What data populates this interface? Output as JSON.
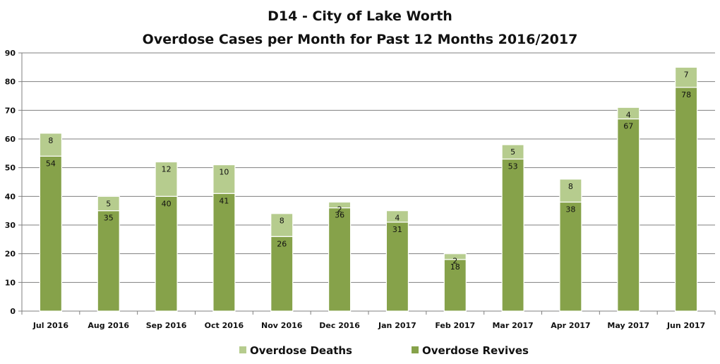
{
  "chart_data": {
    "type": "bar",
    "stacked": true,
    "title": "D14 - City of Lake Worth",
    "subtitle": "Overdose Cases per Month for Past 12 Months 2016/2017",
    "categories": [
      "Jul 2016",
      "Aug 2016",
      "Sep 2016",
      "Oct 2016",
      "Nov 2016",
      "Dec 2016",
      "Jan 2017",
      "Feb 2017",
      "Mar 2017",
      "Apr 2017",
      "May 2017",
      "Jun 2017"
    ],
    "series": [
      {
        "name": "Overdose Revives",
        "color": "#86a24a",
        "values": [
          54,
          35,
          40,
          41,
          26,
          36,
          31,
          18,
          53,
          38,
          67,
          78
        ]
      },
      {
        "name": "Overdose Deaths",
        "color": "#b6cc8e",
        "values": [
          8,
          5,
          12,
          10,
          8,
          2,
          4,
          2,
          5,
          8,
          4,
          7
        ]
      }
    ],
    "ylim": [
      0,
      90
    ],
    "yticks": [
      "0",
      "10",
      "20",
      "30",
      "40",
      "50",
      "60",
      "70",
      "80",
      "90"
    ],
    "grid": true,
    "legend": {
      "position": "bottom",
      "items": [
        "Overdose Deaths",
        "Overdose Revives"
      ]
    },
    "xlabel": "",
    "ylabel": ""
  }
}
